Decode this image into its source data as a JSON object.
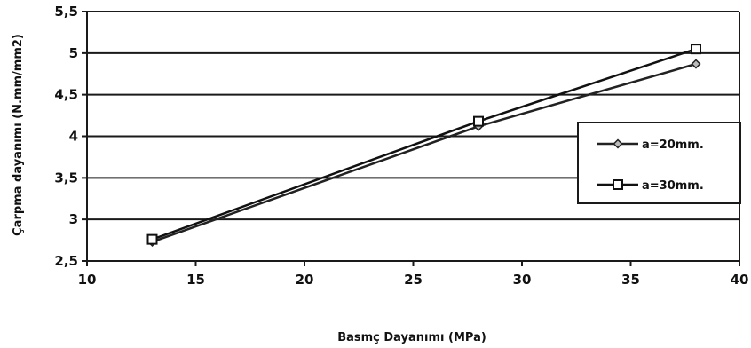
{
  "chart_data": {
    "type": "line",
    "title": "",
    "xlabel": "Basmç Dayanımı (MPa)",
    "ylabel": "Çarpma dayanımı (N.mm/mm2)",
    "xlim": [
      10,
      40
    ],
    "ylim": [
      2.5,
      5.5
    ],
    "x_ticks": [
      10,
      15,
      20,
      25,
      30,
      35,
      40
    ],
    "y_ticks": [
      2.5,
      3,
      3.5,
      4,
      4.5,
      5,
      5.5
    ],
    "x_tick_labels": [
      "10",
      "15",
      "20",
      "25",
      "30",
      "35",
      "40"
    ],
    "y_tick_labels": [
      "2,5",
      "3",
      "3,5",
      "4",
      "4,5",
      "5",
      "5,5"
    ],
    "grid": "horizontal",
    "legend_position": "right",
    "series": [
      {
        "name": "a=20mm.",
        "marker": "diamond",
        "color": "#222222",
        "x": [
          13,
          28,
          38
        ],
        "y": [
          2.73,
          4.12,
          4.87
        ]
      },
      {
        "name": "a=30mm.",
        "marker": "square",
        "color": "#111111",
        "x": [
          13,
          28,
          38
        ],
        "y": [
          2.76,
          4.18,
          5.05
        ]
      }
    ]
  }
}
